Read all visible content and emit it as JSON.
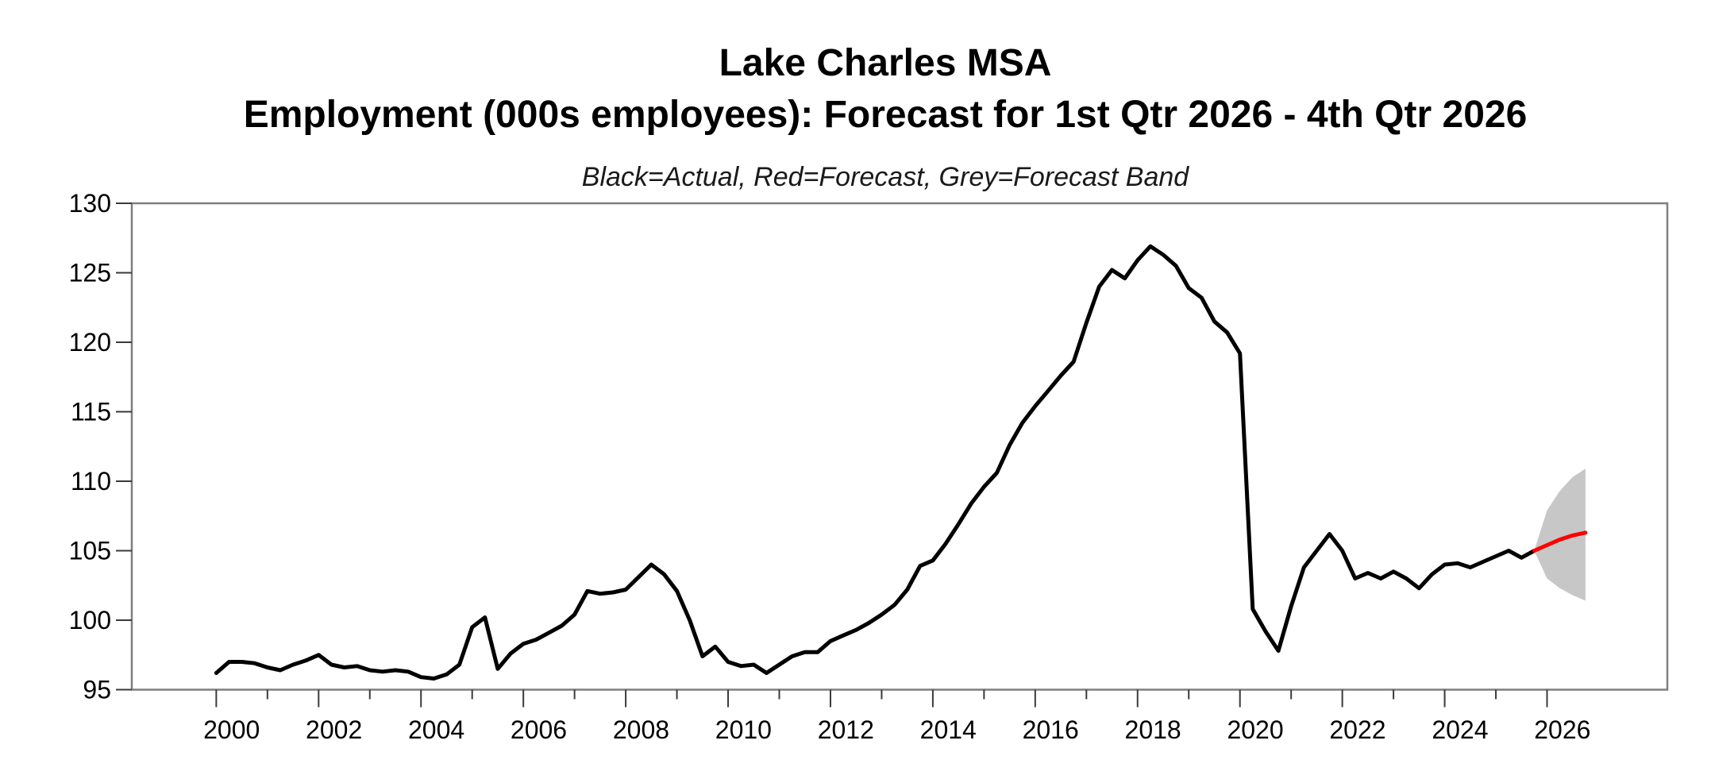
{
  "title_line1": "Lake Charles MSA",
  "title_line2": "Employment (000s employees): Forecast for 1st Qtr 2026 - 4th Qtr 2026",
  "subtitle": "Black=Actual, Red=Forecast, Grey=Forecast Band",
  "colors": {
    "actual": "#000000",
    "forecast": "#ff0000",
    "band": "#c7c7c7",
    "frame": "#7f7f7f",
    "tick": "#3a3a3a",
    "text": "#000000",
    "background": "#ffffff"
  },
  "chart_data": {
    "type": "line",
    "title": "Lake Charles MSA",
    "subtitle2": "Employment (000s employees): Forecast for 1st Qtr 2026 - 4th Qtr 2026",
    "legend_note": "Black=Actual, Red=Forecast, Grey=Forecast Band",
    "frequency": "quarterly",
    "grid": false,
    "x_axis": {
      "range": [
        1998.35,
        2028.35
      ],
      "tick_years": [
        2000,
        2001,
        2002,
        2003,
        2004,
        2005,
        2006,
        2007,
        2008,
        2009,
        2010,
        2011,
        2012,
        2013,
        2014,
        2015,
        2016,
        2017,
        2018,
        2019,
        2020,
        2021,
        2022,
        2023,
        2024,
        2025,
        2026
      ],
      "labeled_years": [
        2000,
        2002,
        2004,
        2006,
        2008,
        2010,
        2012,
        2014,
        2016,
        2018,
        2020,
        2022,
        2024,
        2026
      ],
      "label_offset_years": 0.3
    },
    "y_axis": {
      "range": [
        95,
        130
      ],
      "ticks": [
        95,
        100,
        105,
        110,
        115,
        120,
        125,
        130
      ]
    },
    "series": [
      {
        "name": "Actual",
        "kind": "line",
        "color": "#000000",
        "start": 2000.0,
        "interval": 0.25,
        "values": [
          96.2,
          97.0,
          97.0,
          96.9,
          96.6,
          96.4,
          96.8,
          97.1,
          97.5,
          96.8,
          96.6,
          96.7,
          96.4,
          96.3,
          96.4,
          96.3,
          95.9,
          95.8,
          96.1,
          96.8,
          99.5,
          100.2,
          96.5,
          97.6,
          98.3,
          98.6,
          99.1,
          99.6,
          100.4,
          102.1,
          101.9,
          102.0,
          102.2,
          103.1,
          104.0,
          103.3,
          102.1,
          100.0,
          97.4,
          98.1,
          97.0,
          96.7,
          96.8,
          96.2,
          96.8,
          97.4,
          97.7,
          97.7,
          98.5,
          98.9,
          99.3,
          99.8,
          100.4,
          101.1,
          102.2,
          103.9,
          104.3,
          105.5,
          106.9,
          108.4,
          109.6,
          110.6,
          112.6,
          114.2,
          115.4,
          116.5,
          117.6,
          118.6,
          121.4,
          124.0,
          125.2,
          124.6,
          125.9,
          126.9,
          126.3,
          125.5,
          123.9,
          123.2,
          121.5,
          120.7,
          119.2,
          100.8,
          99.2,
          97.8,
          101.0,
          103.8,
          105.0,
          106.2,
          105.0,
          103.0,
          103.4,
          103.0,
          103.5,
          103.0,
          102.3,
          103.3,
          104.0,
          104.1,
          103.8,
          104.2,
          104.6,
          105.0,
          104.5,
          105.0
        ]
      },
      {
        "name": "Forecast",
        "kind": "line",
        "color": "#ff0000",
        "start": 2025.75,
        "interval": 0.25,
        "values": [
          105.0,
          105.4,
          105.8,
          106.1,
          106.3
        ]
      },
      {
        "name": "Forecast Band",
        "kind": "band",
        "color": "#c7c7c7",
        "start": 2025.75,
        "interval": 0.25,
        "upper": [
          105.0,
          107.9,
          109.3,
          110.3,
          110.9
        ],
        "lower": [
          105.0,
          103.0,
          102.3,
          101.8,
          101.4
        ]
      }
    ]
  }
}
